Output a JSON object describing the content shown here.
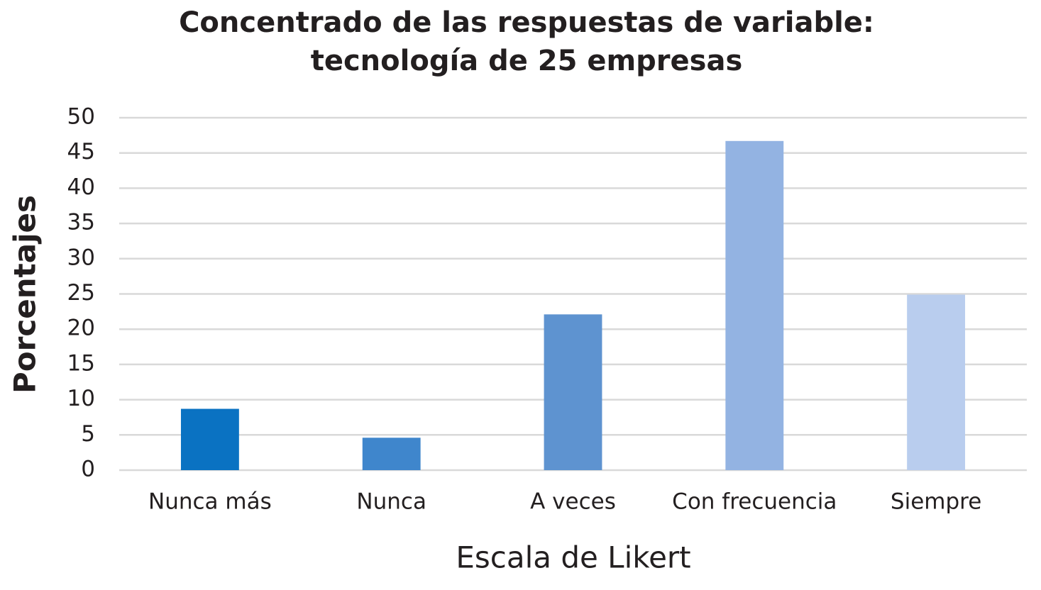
{
  "chart_data": {
    "type": "bar",
    "title": [
      "Concentrado de las respuestas de variable:",
      "tecnología de 25 empresas"
    ],
    "x_label": "Escala de Likert",
    "y_label": "Porcentajes",
    "categories": [
      "Nunca más",
      "Nunca",
      "A veces",
      "Con frecuencia",
      "Siempre"
    ],
    "values": [
      8.7,
      4.6,
      22.1,
      46.7,
      24.9
    ],
    "colors": [
      "#0a72c2",
      "#3f86cc",
      "#5e93d0",
      "#93b3e2",
      "#b9cdee"
    ],
    "ylim": [
      0,
      50
    ],
    "yticks": [
      0,
      5,
      10,
      15,
      20,
      25,
      30,
      35,
      40,
      45,
      50
    ],
    "grid": true
  }
}
